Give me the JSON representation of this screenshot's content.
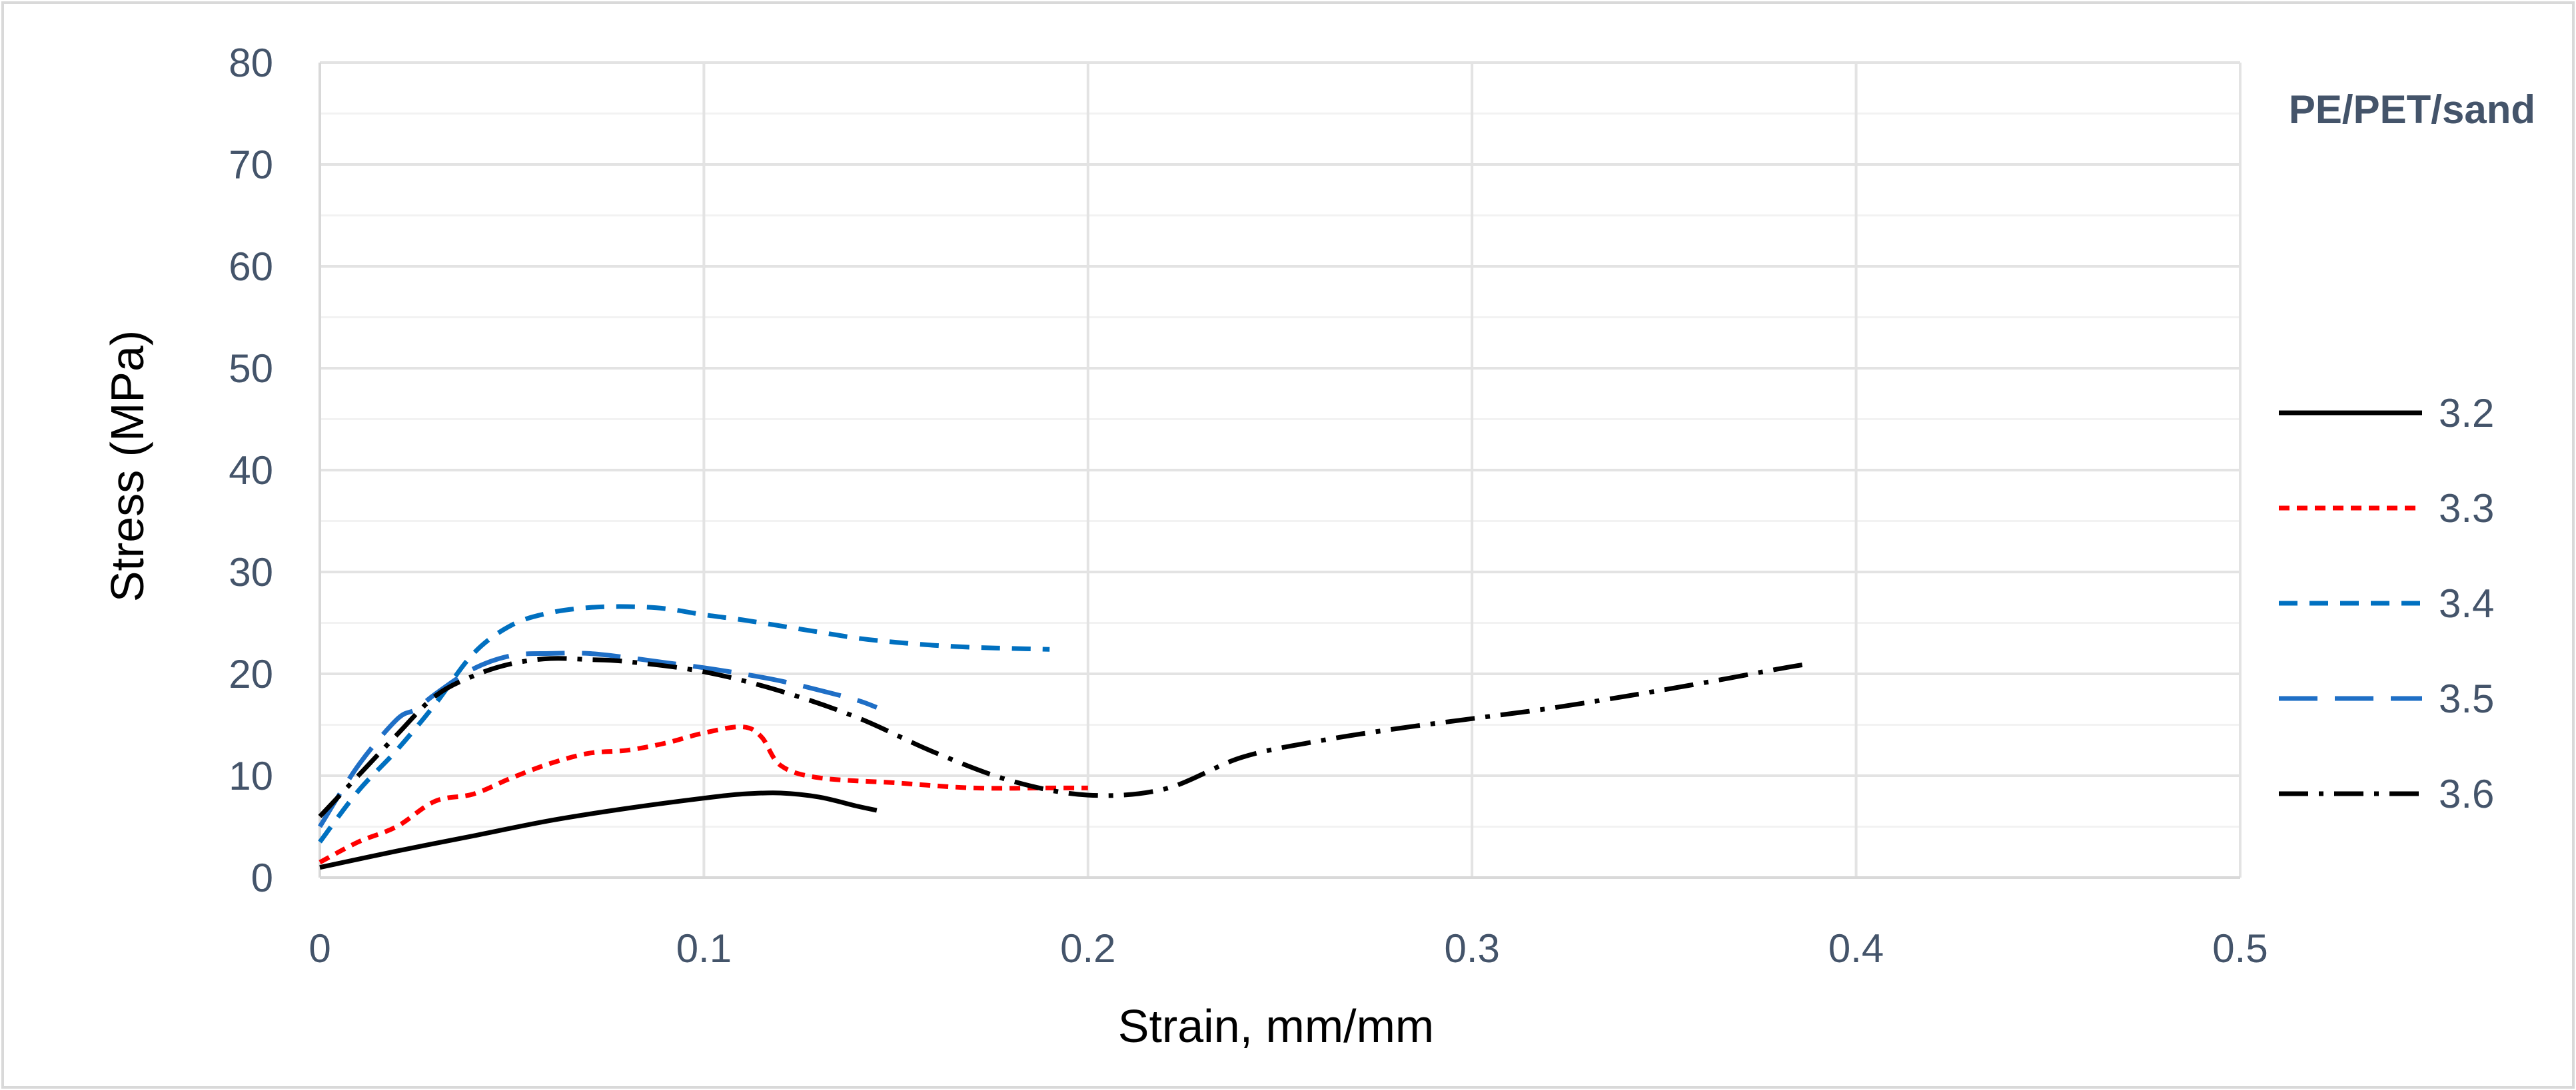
{
  "chart_data": {
    "type": "line",
    "title": "",
    "xlabel": "Strain, mm/mm",
    "ylabel": "Stress (MPa)",
    "xlim": [
      0,
      0.5
    ],
    "ylim": [
      0,
      80
    ],
    "x_ticks": [
      0,
      0.1,
      0.2,
      0.3,
      0.4,
      0.5
    ],
    "x_tick_labels": [
      "0",
      "0.1",
      "0.2",
      "0.3",
      "0.4",
      "0.5"
    ],
    "y_ticks": [
      0,
      10,
      20,
      30,
      40,
      50,
      60,
      70,
      80
    ],
    "y_tick_labels": [
      "0",
      "10",
      "20",
      "30",
      "40",
      "50",
      "60",
      "70",
      "80"
    ],
    "grid": {
      "major_vertical": true,
      "major_horizontal": true,
      "minor_horizontal": true
    },
    "legend": {
      "title": "PE/PET/sand",
      "position": "right"
    },
    "series": [
      {
        "name": "3.2",
        "color": "#000000",
        "dash": "solid",
        "x": [
          0,
          0.02,
          0.04,
          0.06,
          0.08,
          0.1,
          0.11,
          0.12,
          0.13,
          0.14,
          0.145
        ],
        "y": [
          1,
          2.6,
          4.1,
          5.6,
          6.8,
          7.8,
          8.2,
          8.3,
          7.9,
          7.0,
          6.6
        ]
      },
      {
        "name": "3.3",
        "color": "#FF0000",
        "dash": "short-dash",
        "x": [
          0,
          0.01,
          0.02,
          0.03,
          0.04,
          0.05,
          0.06,
          0.07,
          0.08,
          0.09,
          0.1,
          0.11,
          0.115,
          0.12,
          0.13,
          0.15,
          0.17,
          0.19,
          0.2
        ],
        "y": [
          1.5,
          3.5,
          5,
          7.5,
          8.2,
          9.8,
          11.2,
          12.2,
          12.5,
          13.2,
          14.2,
          14.8,
          13.8,
          11,
          9.8,
          9.3,
          8.8,
          8.8,
          8.8
        ]
      },
      {
        "name": "3.4",
        "color": "#0070C0",
        "dash": "dash",
        "x": [
          0,
          0.01,
          0.02,
          0.03,
          0.04,
          0.05,
          0.06,
          0.07,
          0.08,
          0.09,
          0.1,
          0.11,
          0.12,
          0.13,
          0.14,
          0.15,
          0.16,
          0.17,
          0.18,
          0.19
        ],
        "y": [
          3.5,
          8.5,
          12.5,
          17,
          22,
          24.8,
          26,
          26.5,
          26.6,
          26.4,
          25.8,
          25.3,
          24.7,
          24.1,
          23.5,
          23.1,
          22.8,
          22.6,
          22.5,
          22.4
        ]
      },
      {
        "name": "3.5",
        "color": "#1F6FC6",
        "dash": "long-dash",
        "x": [
          0,
          0.01,
          0.02,
          0.025,
          0.03,
          0.04,
          0.05,
          0.06,
          0.07,
          0.08,
          0.09,
          0.1,
          0.11,
          0.12,
          0.13,
          0.14,
          0.145
        ],
        "y": [
          5,
          11,
          15.5,
          16.5,
          18,
          20.5,
          21.8,
          22,
          22,
          21.6,
          21.1,
          20.6,
          20,
          19.3,
          18.4,
          17.4,
          16.7
        ]
      },
      {
        "name": "3.6",
        "color": "#000000",
        "dash": "dash-dot",
        "x": [
          0,
          0.01,
          0.02,
          0.03,
          0.04,
          0.05,
          0.06,
          0.07,
          0.08,
          0.1,
          0.12,
          0.14,
          0.16,
          0.18,
          0.2,
          0.22,
          0.24,
          0.26,
          0.28,
          0.3,
          0.32,
          0.34,
          0.36,
          0.38,
          0.388
        ],
        "y": [
          6,
          10,
          14,
          17.8,
          19.8,
          21,
          21.5,
          21.4,
          21.2,
          20.2,
          18.3,
          15.7,
          12.3,
          9.5,
          8.1,
          8.7,
          11.8,
          13.4,
          14.6,
          15.6,
          16.6,
          17.8,
          19.1,
          20.5,
          21
        ]
      }
    ]
  }
}
